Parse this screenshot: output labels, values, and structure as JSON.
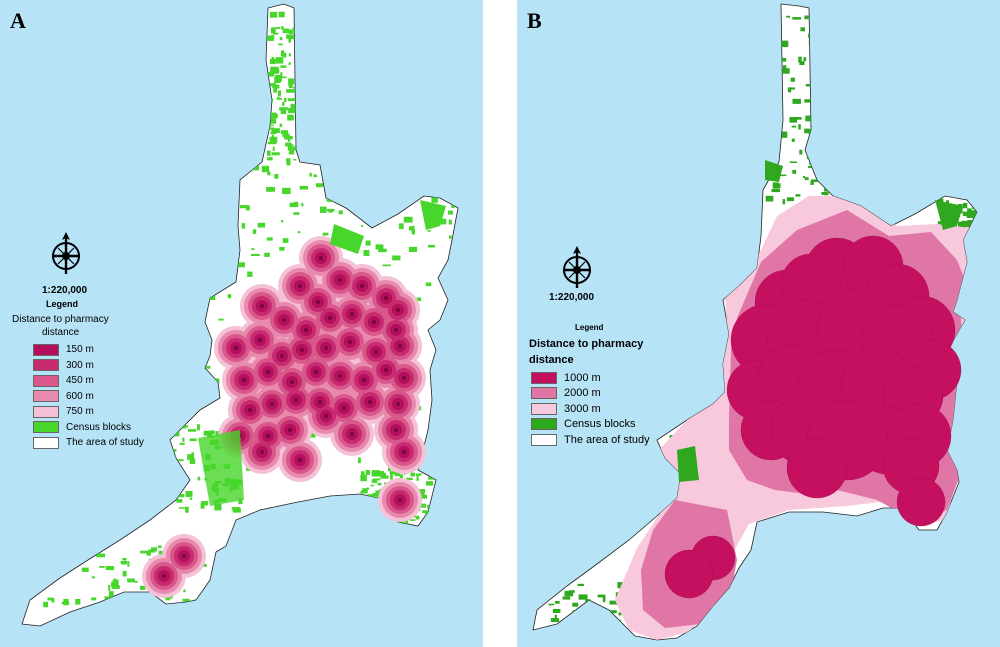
{
  "colors": {
    "sea": "#b7e3f7",
    "land": "#ffffff",
    "census": "#47d62b",
    "census_dark": "#2fa81f",
    "buf150": "#b20f5c",
    "buf300": "#c72a6e",
    "buf450": "#d9588c",
    "buf600": "#e889ae",
    "buf750": "#f4c1d6",
    "b1000": "#c4105f",
    "b2000": "#df76a5",
    "b3000": "#f8c9dd"
  },
  "panel_a": {
    "letter": "A",
    "compass_icon": "compass-rose-icon",
    "scale": "1:220,000",
    "legend_title": "Legend",
    "subtitle_line1": "Distance to pharmacy",
    "subtitle_line2": "distance",
    "items": [
      {
        "label": "150 m",
        "color": "#b20f5c"
      },
      {
        "label": "300 m",
        "color": "#c72a6e"
      },
      {
        "label": "450 m",
        "color": "#d9588c"
      },
      {
        "label": "600 m",
        "color": "#e889ae"
      },
      {
        "label": "750 m",
        "color": "#f4c1d6"
      },
      {
        "label": "Census blocks",
        "color": "#47d62b"
      },
      {
        "label": "The area of study",
        "color": "#ffffff"
      }
    ]
  },
  "panel_b": {
    "letter": "B",
    "compass_icon": "compass-rose-icon",
    "scale": "1:220,000",
    "legend_title": "Legend",
    "subtitle_line1": "Distance to pharmacy",
    "subtitle_line2": "distance",
    "items": [
      {
        "label": "1000 m",
        "color": "#c4105f"
      },
      {
        "label": "2000 m",
        "color": "#df76a5"
      },
      {
        "label": "3000 m",
        "color": "#f8c9dd"
      },
      {
        "label": "Census blocks",
        "color": "#2fa81f"
      },
      {
        "label": "The area of study",
        "color": "#ffffff"
      }
    ]
  }
}
